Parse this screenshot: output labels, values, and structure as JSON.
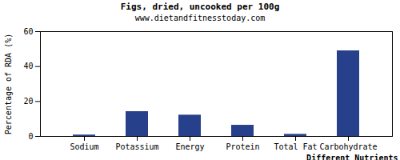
{
  "chart_data": {
    "type": "bar",
    "title": "Figs, dried, uncooked per 100g",
    "subtitle": "www.dietandfitnesstoday.com",
    "x_label": "Different Nutrients",
    "y_label": "Percentage of RDA (%)",
    "categories": [
      "Sodium",
      "Potassium",
      "Energy",
      "Protein",
      "Total Fat",
      "Carbohydrate"
    ],
    "values": [
      0.8,
      14.2,
      12.2,
      6.4,
      1.2,
      49
    ],
    "color": "#27408b",
    "ylim": [
      0,
      60
    ],
    "yticks": [
      0,
      20,
      40,
      60
    ],
    "grid": false
  }
}
